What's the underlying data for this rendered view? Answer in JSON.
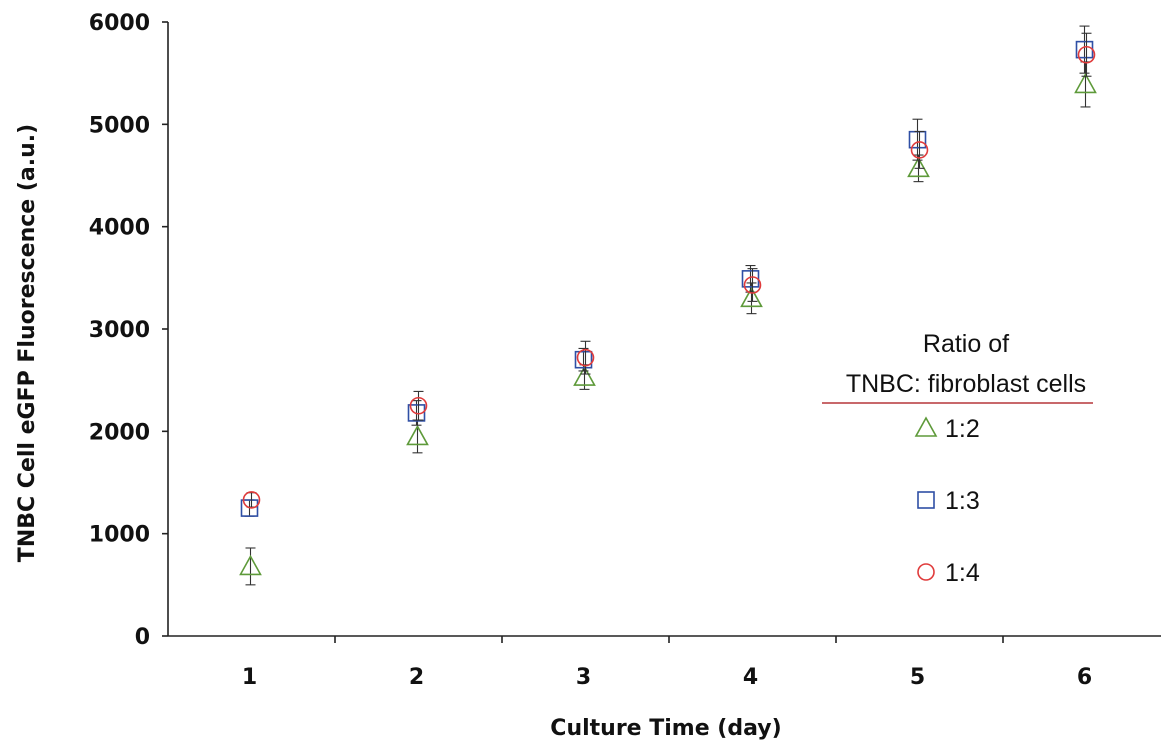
{
  "chart_data": {
    "type": "scatter",
    "xlabel": "Culture Time (day)",
    "ylabel": "TNBC Cell eGFP Fluorescence (a.u.)",
    "xlim": [
      0.5,
      6.5
    ],
    "ylim": [
      0,
      6000
    ],
    "x_ticks": [
      "1",
      "2",
      "3",
      "4",
      "5",
      "6"
    ],
    "y_ticks": [
      "0",
      "1000",
      "2000",
      "3000",
      "4000",
      "5000",
      "6000"
    ],
    "grid": false,
    "legend": {
      "title_line1": "Ratio of",
      "title_line2": "TNBC: fibroblast cells",
      "placement": "right",
      "underline_color": "#b5373a"
    },
    "series": [
      {
        "name": "1:2",
        "marker": "triangle",
        "color": "#5e9a3a",
        "x": [
          1,
          2,
          3,
          4,
          5,
          6
        ],
        "y": [
          680,
          1950,
          2530,
          3300,
          4570,
          5390
        ],
        "err": [
          180,
          160,
          120,
          150,
          130,
          220
        ]
      },
      {
        "name": "1:3",
        "marker": "square",
        "color": "#2f4fa5",
        "x": [
          1,
          2,
          3,
          4,
          5,
          6
        ],
        "y": [
          1250,
          2180,
          2700,
          3490,
          4850,
          5730
        ],
        "err": [
          80,
          120,
          110,
          130,
          200,
          230
        ]
      },
      {
        "name": "1:4",
        "marker": "circle",
        "color": "#e03b3b",
        "x": [
          1,
          2,
          3,
          4,
          5,
          6
        ],
        "y": [
          1330,
          2250,
          2720,
          3430,
          4750,
          5680
        ],
        "err": [
          70,
          140,
          160,
          160,
          180,
          210
        ]
      }
    ]
  }
}
